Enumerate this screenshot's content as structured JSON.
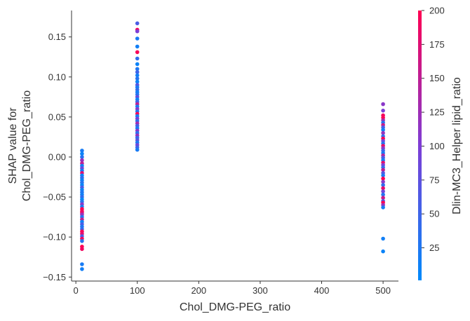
{
  "chart_data": {
    "type": "scatter",
    "title": "",
    "xlabel": "Chol_DMG-PEG_ratio",
    "ylabel_lines": [
      "SHAP value for",
      "Chol_DMG-PEG_ratio"
    ],
    "xlim": [
      -7,
      525
    ],
    "ylim": [
      -0.155,
      0.183
    ],
    "x_ticks": [
      0,
      100,
      200,
      300,
      400,
      500
    ],
    "x_tick_labels": [
      "0",
      "100",
      "200",
      "300",
      "400",
      "500"
    ],
    "y_ticks": [
      -0.15,
      -0.1,
      -0.05,
      0.0,
      0.05,
      0.1,
      0.15
    ],
    "y_tick_labels": [
      "−0.15",
      "−0.10",
      "−0.05",
      "0.00",
      "0.05",
      "0.10",
      "0.15"
    ],
    "grid": false,
    "colorbar": {
      "label": "Dlin-MC3_Helper lipid_ratio",
      "range": [
        1,
        200
      ],
      "ticks": [
        25,
        50,
        75,
        100,
        125,
        150,
        175,
        200
      ],
      "tick_labels": [
        "25",
        "50",
        "75",
        "100",
        "125",
        "150",
        "175",
        "200"
      ],
      "colors": [
        "#008afb",
        "#ff0052"
      ]
    },
    "points": [
      {
        "x": 10,
        "y": 0.008,
        "c": 20
      },
      {
        "x": 10,
        "y": 0.004,
        "c": 10
      },
      {
        "x": 10,
        "y": 0.0,
        "c": 30
      },
      {
        "x": 10,
        "y": -0.004,
        "c": 120
      },
      {
        "x": 10,
        "y": -0.008,
        "c": 150
      },
      {
        "x": 10,
        "y": -0.011,
        "c": 15
      },
      {
        "x": 10,
        "y": -0.014,
        "c": 90
      },
      {
        "x": 10,
        "y": -0.017,
        "c": 20
      },
      {
        "x": 10,
        "y": -0.02,
        "c": 175
      },
      {
        "x": 10,
        "y": -0.023,
        "c": 10
      },
      {
        "x": 10,
        "y": -0.026,
        "c": 40
      },
      {
        "x": 10,
        "y": -0.029,
        "c": 12
      },
      {
        "x": 10,
        "y": -0.032,
        "c": 30
      },
      {
        "x": 10,
        "y": -0.035,
        "c": 8
      },
      {
        "x": 10,
        "y": -0.038,
        "c": 60
      },
      {
        "x": 10,
        "y": -0.041,
        "c": 10
      },
      {
        "x": 10,
        "y": -0.044,
        "c": 25
      },
      {
        "x": 10,
        "y": -0.047,
        "c": 15
      },
      {
        "x": 10,
        "y": -0.05,
        "c": 40
      },
      {
        "x": 10,
        "y": -0.053,
        "c": 5
      },
      {
        "x": 10,
        "y": -0.056,
        "c": 30
      },
      {
        "x": 10,
        "y": -0.059,
        "c": 110
      },
      {
        "x": 10,
        "y": -0.062,
        "c": 20
      },
      {
        "x": 10,
        "y": -0.065,
        "c": 200
      },
      {
        "x": 10,
        "y": -0.068,
        "c": 190
      },
      {
        "x": 10,
        "y": -0.07,
        "c": 180
      },
      {
        "x": 10,
        "y": -0.072,
        "c": 120
      },
      {
        "x": 10,
        "y": -0.075,
        "c": 30
      },
      {
        "x": 10,
        "y": -0.078,
        "c": 150
      },
      {
        "x": 10,
        "y": -0.081,
        "c": 10
      },
      {
        "x": 10,
        "y": -0.084,
        "c": 60
      },
      {
        "x": 10,
        "y": -0.087,
        "c": 25
      },
      {
        "x": 10,
        "y": -0.09,
        "c": 40
      },
      {
        "x": 10,
        "y": -0.093,
        "c": 195
      },
      {
        "x": 10,
        "y": -0.096,
        "c": 180
      },
      {
        "x": 10,
        "y": -0.099,
        "c": 60
      },
      {
        "x": 10,
        "y": -0.102,
        "c": 190
      },
      {
        "x": 10,
        "y": -0.105,
        "c": 30
      },
      {
        "x": 10,
        "y": -0.112,
        "c": 200
      },
      {
        "x": 10,
        "y": -0.115,
        "c": 190
      },
      {
        "x": 10,
        "y": -0.134,
        "c": 20
      },
      {
        "x": 10,
        "y": -0.14,
        "c": 15
      },
      {
        "x": 100,
        "y": 0.167,
        "c": 60
      },
      {
        "x": 100,
        "y": 0.159,
        "c": 190
      },
      {
        "x": 100,
        "y": 0.157,
        "c": 100
      },
      {
        "x": 100,
        "y": 0.148,
        "c": 20
      },
      {
        "x": 100,
        "y": 0.138,
        "c": 15
      },
      {
        "x": 100,
        "y": 0.131,
        "c": 195
      },
      {
        "x": 100,
        "y": 0.123,
        "c": 40
      },
      {
        "x": 100,
        "y": 0.116,
        "c": 10
      },
      {
        "x": 100,
        "y": 0.11,
        "c": 25
      },
      {
        "x": 100,
        "y": 0.106,
        "c": 50
      },
      {
        "x": 100,
        "y": 0.102,
        "c": 15
      },
      {
        "x": 100,
        "y": 0.098,
        "c": 30
      },
      {
        "x": 100,
        "y": 0.094,
        "c": 10
      },
      {
        "x": 100,
        "y": 0.09,
        "c": 70
      },
      {
        "x": 100,
        "y": 0.087,
        "c": 20
      },
      {
        "x": 100,
        "y": 0.084,
        "c": 40
      },
      {
        "x": 100,
        "y": 0.081,
        "c": 15
      },
      {
        "x": 100,
        "y": 0.078,
        "c": 30
      },
      {
        "x": 100,
        "y": 0.075,
        "c": 80
      },
      {
        "x": 100,
        "y": 0.072,
        "c": 10
      },
      {
        "x": 100,
        "y": 0.069,
        "c": 50
      },
      {
        "x": 100,
        "y": 0.066,
        "c": 150
      },
      {
        "x": 100,
        "y": 0.063,
        "c": 20
      },
      {
        "x": 100,
        "y": 0.06,
        "c": 110
      },
      {
        "x": 100,
        "y": 0.057,
        "c": 30
      },
      {
        "x": 100,
        "y": 0.054,
        "c": 190
      },
      {
        "x": 100,
        "y": 0.051,
        "c": 15
      },
      {
        "x": 100,
        "y": 0.048,
        "c": 100
      },
      {
        "x": 100,
        "y": 0.045,
        "c": 40
      },
      {
        "x": 100,
        "y": 0.042,
        "c": 130
      },
      {
        "x": 100,
        "y": 0.039,
        "c": 60
      },
      {
        "x": 100,
        "y": 0.036,
        "c": 20
      },
      {
        "x": 100,
        "y": 0.033,
        "c": 110
      },
      {
        "x": 100,
        "y": 0.03,
        "c": 35
      },
      {
        "x": 100,
        "y": 0.027,
        "c": 120
      },
      {
        "x": 100,
        "y": 0.024,
        "c": 45
      },
      {
        "x": 100,
        "y": 0.021,
        "c": 70
      },
      {
        "x": 100,
        "y": 0.018,
        "c": 25
      },
      {
        "x": 100,
        "y": 0.015,
        "c": 90
      },
      {
        "x": 100,
        "y": 0.012,
        "c": 50
      },
      {
        "x": 100,
        "y": 0.009,
        "c": 20
      },
      {
        "x": 500,
        "y": 0.066,
        "c": 110
      },
      {
        "x": 500,
        "y": 0.058,
        "c": 100
      },
      {
        "x": 500,
        "y": 0.052,
        "c": 190
      },
      {
        "x": 500,
        "y": 0.049,
        "c": 200
      },
      {
        "x": 500,
        "y": 0.046,
        "c": 130
      },
      {
        "x": 500,
        "y": 0.043,
        "c": 30
      },
      {
        "x": 500,
        "y": 0.04,
        "c": 160
      },
      {
        "x": 500,
        "y": 0.037,
        "c": 60
      },
      {
        "x": 500,
        "y": 0.034,
        "c": 15
      },
      {
        "x": 500,
        "y": 0.03,
        "c": 120
      },
      {
        "x": 500,
        "y": 0.026,
        "c": 40
      },
      {
        "x": 500,
        "y": 0.023,
        "c": 200
      },
      {
        "x": 500,
        "y": 0.02,
        "c": 90
      },
      {
        "x": 500,
        "y": 0.017,
        "c": 30
      },
      {
        "x": 500,
        "y": 0.014,
        "c": 180
      },
      {
        "x": 500,
        "y": 0.011,
        "c": 110
      },
      {
        "x": 500,
        "y": 0.008,
        "c": 50
      },
      {
        "x": 500,
        "y": 0.005,
        "c": 20
      },
      {
        "x": 500,
        "y": 0.002,
        "c": 140
      },
      {
        "x": 500,
        "y": -0.001,
        "c": 60
      },
      {
        "x": 500,
        "y": -0.004,
        "c": 15
      },
      {
        "x": 500,
        "y": -0.007,
        "c": 180
      },
      {
        "x": 500,
        "y": -0.01,
        "c": 100
      },
      {
        "x": 500,
        "y": -0.013,
        "c": 40
      },
      {
        "x": 500,
        "y": -0.016,
        "c": 150
      },
      {
        "x": 500,
        "y": -0.02,
        "c": 70
      },
      {
        "x": 500,
        "y": -0.023,
        "c": 25
      },
      {
        "x": 500,
        "y": -0.027,
        "c": 200
      },
      {
        "x": 500,
        "y": -0.031,
        "c": 110
      },
      {
        "x": 500,
        "y": -0.035,
        "c": 40
      },
      {
        "x": 500,
        "y": -0.039,
        "c": 180
      },
      {
        "x": 500,
        "y": -0.043,
        "c": 90
      },
      {
        "x": 500,
        "y": -0.047,
        "c": 30
      },
      {
        "x": 500,
        "y": -0.051,
        "c": 160
      },
      {
        "x": 500,
        "y": -0.055,
        "c": 60
      },
      {
        "x": 500,
        "y": -0.057,
        "c": 200
      },
      {
        "x": 500,
        "y": -0.06,
        "c": 120
      },
      {
        "x": 500,
        "y": -0.063,
        "c": 20
      },
      {
        "x": 500,
        "y": -0.102,
        "c": 15
      },
      {
        "x": 500,
        "y": -0.118,
        "c": 10
      }
    ]
  }
}
